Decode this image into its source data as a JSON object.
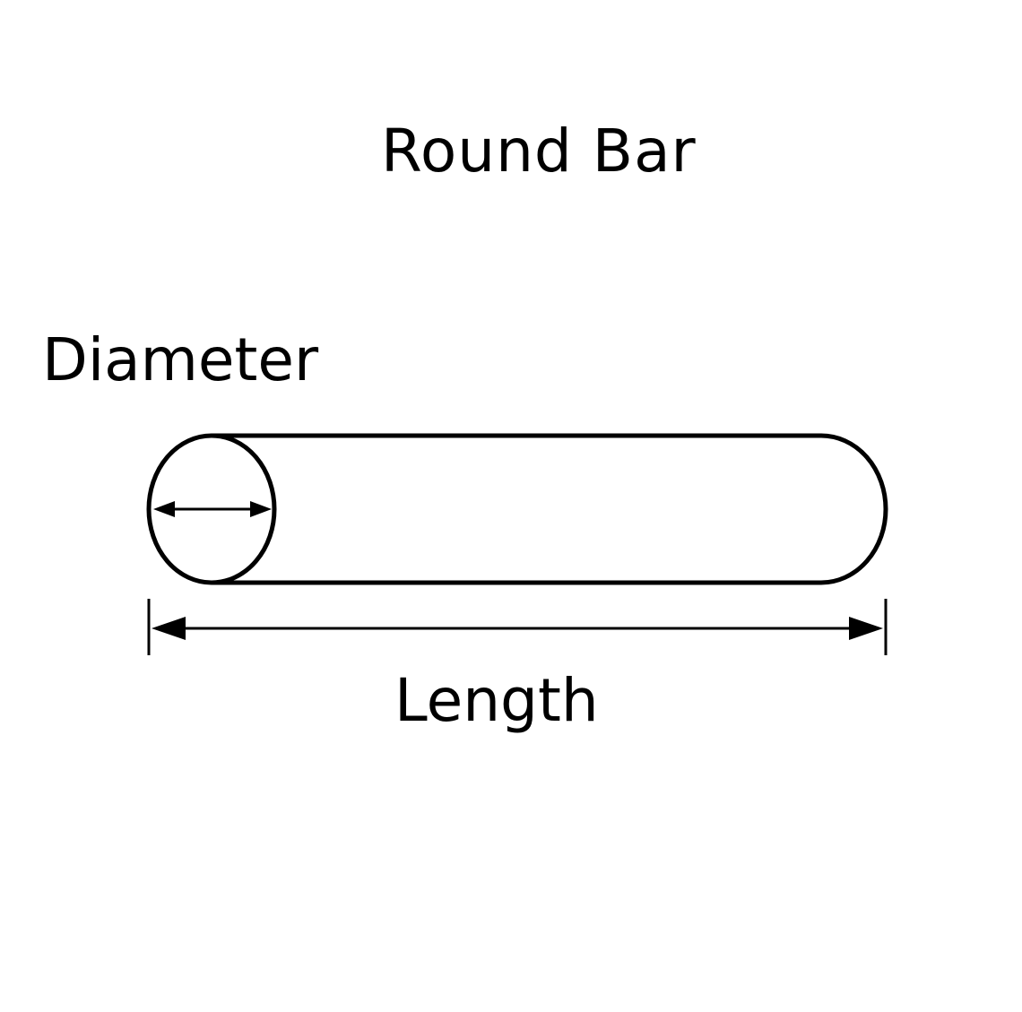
{
  "diagram": {
    "title": "Round Bar",
    "diameter_label": "Diameter",
    "length_label": "Length",
    "colors": {
      "stroke": "#000000",
      "background": "#ffffff"
    }
  }
}
